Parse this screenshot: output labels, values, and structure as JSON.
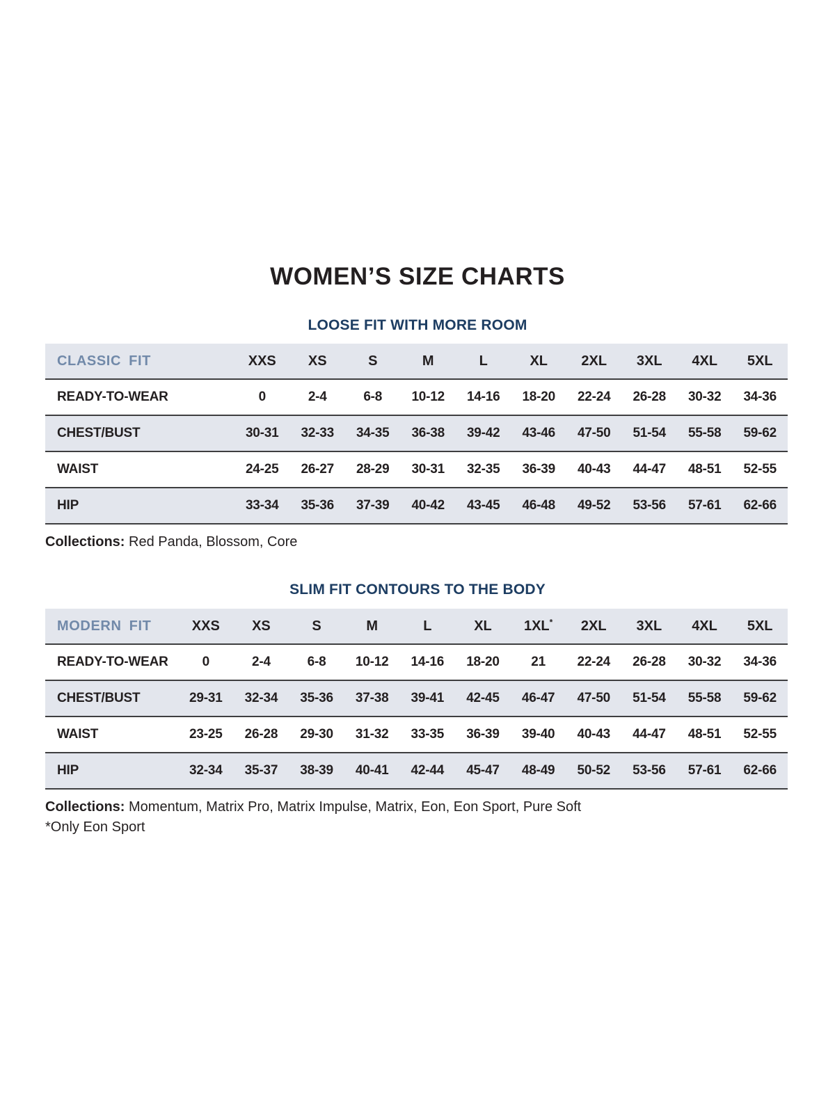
{
  "page": {
    "title": "WOMEN’S SIZE CHARTS"
  },
  "colors": {
    "heading_navy": "#1d3d62",
    "fit_label_blue": "#7189a9",
    "row_shade": "#e3e6ed",
    "separator_dark": "#3e3e40",
    "text_black": "#231f20"
  },
  "sections": [
    {
      "heading": "LOOSE FIT WITH MORE ROOM",
      "table": {
        "fit_label": "CLASSIC FIT",
        "columns": [
          "XXS",
          "XS",
          "S",
          "M",
          "L",
          "XL",
          "2XL",
          "3XL",
          "4XL",
          "5XL"
        ],
        "rows": [
          {
            "label": "READY-TO-WEAR",
            "values": [
              "0",
              "2-4",
              "6-8",
              "10-12",
              "14-16",
              "18-20",
              "22-24",
              "26-28",
              "30-32",
              "34-36"
            ]
          },
          {
            "label": "CHEST/BUST",
            "values": [
              "30-31",
              "32-33",
              "34-35",
              "36-38",
              "39-42",
              "43-46",
              "47-50",
              "51-54",
              "55-58",
              "59-62"
            ]
          },
          {
            "label": "WAIST",
            "values": [
              "24-25",
              "26-27",
              "28-29",
              "30-31",
              "32-35",
              "36-39",
              "40-43",
              "44-47",
              "48-51",
              "52-55"
            ]
          },
          {
            "label": "HIP",
            "values": [
              "33-34",
              "35-36",
              "37-39",
              "40-42",
              "43-45",
              "46-48",
              "49-52",
              "53-56",
              "57-61",
              "62-66"
            ]
          }
        ]
      },
      "collections_label": "Collections:",
      "collections_text": " Red Panda, Blossom, Core"
    },
    {
      "heading": "SLIM FIT CONTOURS TO THE BODY",
      "table": {
        "fit_label": "MODERN FIT",
        "columns": [
          "XXS",
          "XS",
          "S",
          "M",
          "L",
          "XL",
          "1XL*",
          "2XL",
          "3XL",
          "4XL",
          "5XL"
        ],
        "rows": [
          {
            "label": "READY-TO-WEAR",
            "values": [
              "0",
              "2-4",
              "6-8",
              "10-12",
              "14-16",
              "18-20",
              "21",
              "22-24",
              "26-28",
              "30-32",
              "34-36"
            ]
          },
          {
            "label": "CHEST/BUST",
            "values": [
              "29-31",
              "32-34",
              "35-36",
              "37-38",
              "39-41",
              "42-45",
              "46-47",
              "47-50",
              "51-54",
              "55-58",
              "59-62"
            ]
          },
          {
            "label": "WAIST",
            "values": [
              "23-25",
              "26-28",
              "29-30",
              "31-32",
              "33-35",
              "36-39",
              "39-40",
              "40-43",
              "44-47",
              "48-51",
              "52-55"
            ]
          },
          {
            "label": "HIP",
            "values": [
              "32-34",
              "35-37",
              "38-39",
              "40-41",
              "42-44",
              "45-47",
              "48-49",
              "50-52",
              "53-56",
              "57-61",
              "62-66"
            ]
          }
        ]
      },
      "collections_label": "Collections:",
      "collections_text": " Momentum, Matrix Pro, Matrix Impulse, Matrix, Eon, Eon Sport, Pure Soft",
      "footnote": "*Only Eon Sport"
    }
  ]
}
